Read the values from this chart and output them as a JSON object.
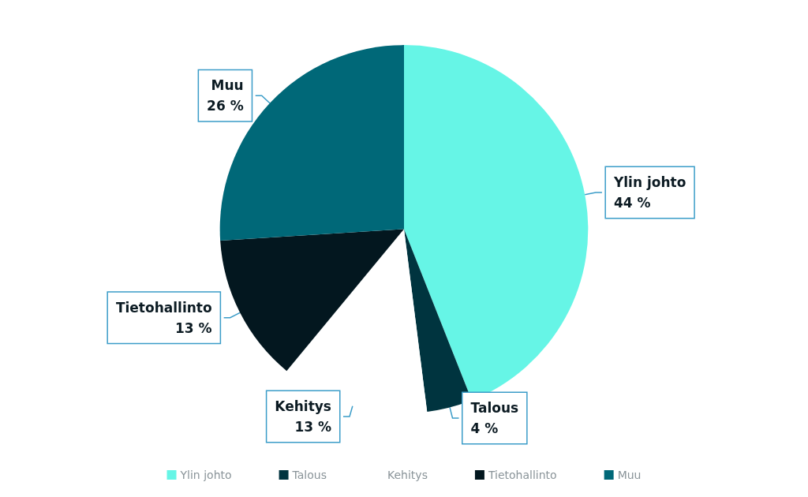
{
  "chart_data": {
    "type": "pie",
    "categories": [
      "Ylin johto",
      "Talous",
      "Kehitys",
      "Tietohallinto",
      "Muu"
    ],
    "values": [
      44,
      4,
      13,
      13,
      26
    ],
    "value_labels": [
      "44 %",
      "4 %",
      "13 %",
      "13 %",
      "26 %"
    ],
    "colors": [
      "#66f5e6",
      "#00343f",
      "#ffffff",
      "#03171f",
      "#006878"
    ],
    "legend": "bottom"
  }
}
